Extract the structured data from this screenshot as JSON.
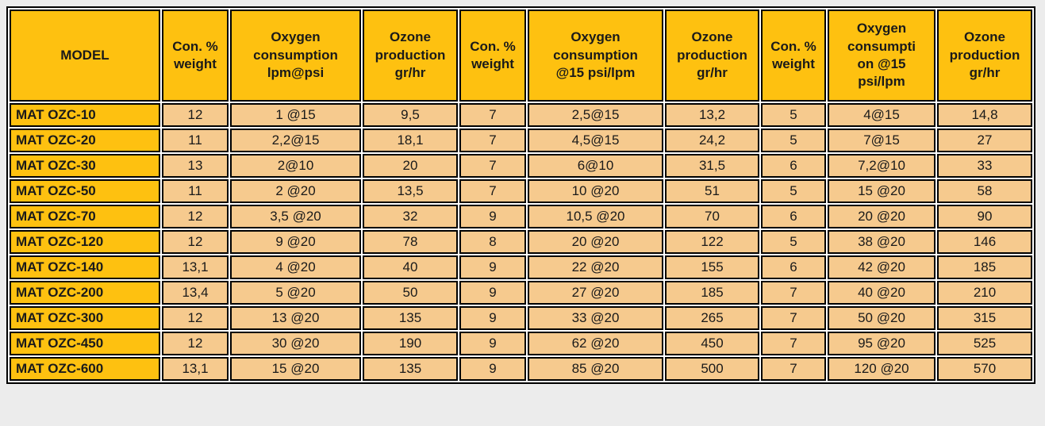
{
  "chart_data": {
    "type": "table",
    "columns": [
      {
        "label": "MODEL"
      },
      {
        "label": "Con. %\nweight"
      },
      {
        "label": "Oxygen\nconsumption\nlpm@psi"
      },
      {
        "label": "Ozone\nproduction\ngr/hr"
      },
      {
        "label": "Con. %\nweight"
      },
      {
        "label": "Oxygen\nconsumption\n@15 psi/lpm"
      },
      {
        "label": "Ozone\nproduction\ngr/hr"
      },
      {
        "label": "Con. %\nweight"
      },
      {
        "label": "Oxygen\nconsumpti\non @15\npsi/lpm"
      },
      {
        "label": "Ozone\nproduction\ngr/hr"
      }
    ],
    "rows": [
      [
        "MAT OZC-10",
        "12",
        "1 @15",
        "9,5",
        "7",
        "2,5@15",
        "13,2",
        "5",
        "4@15",
        "14,8"
      ],
      [
        "MAT OZC-20",
        "11",
        "2,2@15",
        "18,1",
        "7",
        "4,5@15",
        "24,2",
        "5",
        "7@15",
        "27"
      ],
      [
        "MAT OZC-30",
        "13",
        "2@10",
        "20",
        "7",
        "6@10",
        "31,5",
        "6",
        "7,2@10",
        "33"
      ],
      [
        "MAT OZC-50",
        "11",
        "2 @20",
        "13,5",
        "7",
        "10 @20",
        "51",
        "5",
        "15 @20",
        "58"
      ],
      [
        "MAT OZC-70",
        "12",
        "3,5 @20",
        "32",
        "9",
        "10,5 @20",
        "70",
        "6",
        "20 @20",
        "90"
      ],
      [
        "MAT OZC-120",
        "12",
        "9 @20",
        "78",
        "8",
        "20 @20",
        "122",
        "5",
        "38 @20",
        "146"
      ],
      [
        "MAT OZC-140",
        "13,1",
        "4 @20",
        "40",
        "9",
        "22 @20",
        "155",
        "6",
        "42 @20",
        "185"
      ],
      [
        "MAT OZC-200",
        "13,4",
        "5 @20",
        "50",
        "9",
        "27 @20",
        "185",
        "7",
        "40 @20",
        "210"
      ],
      [
        "MAT OZC-300",
        "12",
        "13 @20",
        "135",
        "9",
        "33 @20",
        "265",
        "7",
        "50 @20",
        "315"
      ],
      [
        "MAT OZC-450",
        "12",
        "30 @20",
        "190",
        "9",
        "62 @20",
        "450",
        "7",
        "95 @20",
        "525"
      ],
      [
        "MAT OZC-600",
        "13,1",
        "15 @20",
        "135",
        "9",
        "85 @20",
        "500",
        "7",
        "120 @20",
        "570"
      ]
    ]
  },
  "style": {
    "page_bg": "#ececec",
    "header_bg": "#fec110",
    "cell_bg": "#f6ca8e",
    "grid_color": "#000000",
    "text_color": "#1a1a1a",
    "gap_color": "#ffffff"
  }
}
